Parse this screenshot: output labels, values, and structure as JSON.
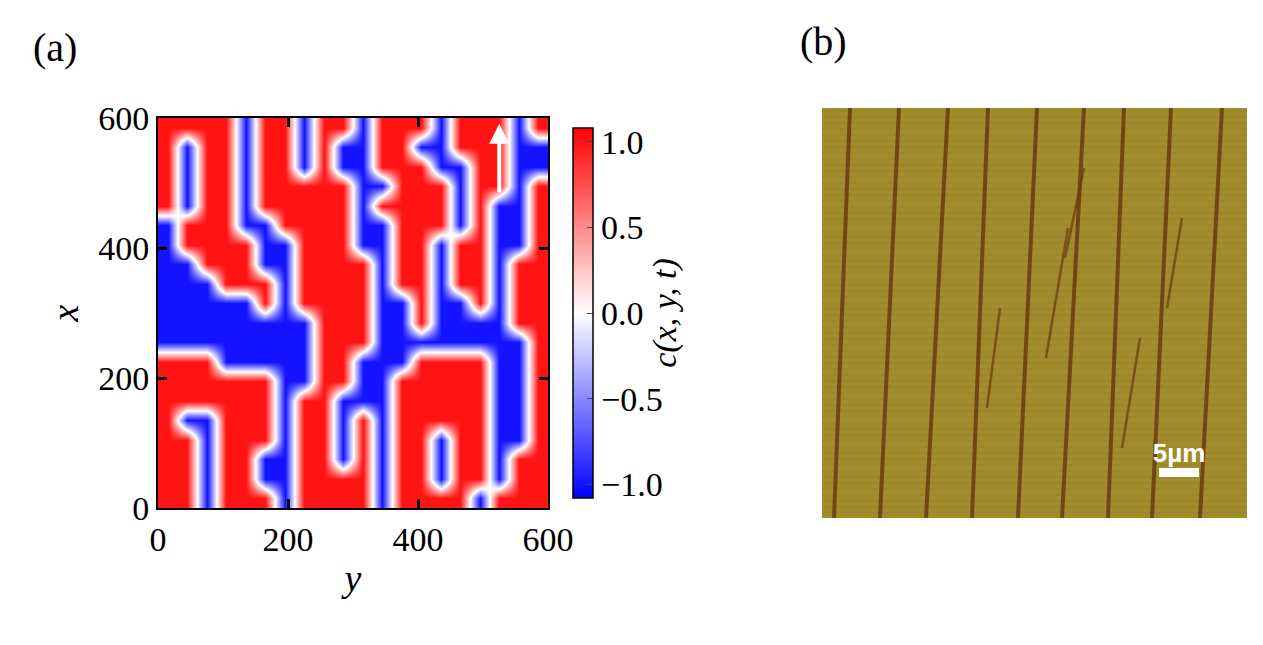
{
  "chart_data": {
    "type": "heatmap",
    "title": "(a)",
    "xlabel": "y",
    "ylabel": "x",
    "colorbar_label": "c(x, y, t)",
    "x": [
      15,
      45,
      75,
      105,
      135,
      165,
      195,
      225,
      255,
      285,
      315,
      345,
      375,
      405,
      435,
      465,
      495,
      525,
      555,
      585
    ],
    "y": [
      15,
      45,
      75,
      105,
      135,
      165,
      195,
      225,
      255,
      285,
      315,
      345,
      375,
      405,
      435,
      465,
      495,
      525,
      555,
      585
    ],
    "z": [
      [
        1,
        1,
        -1,
        1,
        1,
        1,
        -1,
        1,
        1,
        1,
        1,
        -1,
        1,
        1,
        1,
        1,
        -1,
        1,
        1,
        1
      ],
      [
        1,
        1,
        -1,
        1,
        1,
        -1,
        -1,
        1,
        1,
        1,
        1,
        -1,
        1,
        1,
        -1,
        1,
        1,
        -1,
        1,
        1
      ],
      [
        1,
        1,
        -1,
        1,
        1,
        -1,
        -1,
        1,
        1,
        -1,
        1,
        -1,
        1,
        1,
        -1,
        1,
        1,
        -1,
        1,
        1
      ],
      [
        1,
        1,
        -1,
        1,
        1,
        1,
        -1,
        1,
        1,
        -1,
        1,
        -1,
        1,
        1,
        -1,
        1,
        1,
        -1,
        -1,
        1
      ],
      [
        1,
        -1,
        -1,
        1,
        1,
        1,
        -1,
        1,
        1,
        -1,
        1,
        -1,
        1,
        1,
        1,
        1,
        1,
        -1,
        -1,
        1
      ],
      [
        1,
        1,
        1,
        1,
        1,
        1,
        -1,
        1,
        1,
        -1,
        -1,
        -1,
        1,
        1,
        1,
        1,
        1,
        -1,
        -1,
        1
      ],
      [
        1,
        1,
        1,
        1,
        1,
        1,
        -1,
        -1,
        1,
        1,
        -1,
        -1,
        1,
        1,
        1,
        1,
        1,
        -1,
        -1,
        1
      ],
      [
        1,
        1,
        1,
        -1,
        -1,
        -1,
        -1,
        -1,
        1,
        1,
        -1,
        -1,
        -1,
        1,
        1,
        1,
        1,
        -1,
        -1,
        1
      ],
      [
        -1,
        -1,
        -1,
        -1,
        -1,
        -1,
        -1,
        -1,
        1,
        1,
        1,
        -1,
        -1,
        -1,
        -1,
        -1,
        -1,
        -1,
        -1,
        1
      ],
      [
        -1,
        -1,
        -1,
        -1,
        -1,
        -1,
        -1,
        -1,
        1,
        1,
        1,
        -1,
        -1,
        1,
        -1,
        -1,
        -1,
        -1,
        1,
        1
      ],
      [
        -1,
        -1,
        -1,
        -1,
        -1,
        1,
        -1,
        1,
        1,
        1,
        1,
        -1,
        -1,
        1,
        -1,
        -1,
        1,
        -1,
        1,
        1
      ],
      [
        -1,
        -1,
        -1,
        1,
        1,
        1,
        -1,
        1,
        1,
        1,
        1,
        -1,
        1,
        1,
        -1,
        1,
        1,
        -1,
        1,
        1
      ],
      [
        -1,
        -1,
        1,
        1,
        1,
        -1,
        -1,
        1,
        1,
        1,
        1,
        -1,
        1,
        1,
        -1,
        1,
        1,
        -1,
        1,
        1
      ],
      [
        -1,
        1,
        1,
        1,
        1,
        -1,
        -1,
        1,
        1,
        1,
        -1,
        -1,
        1,
        1,
        -1,
        1,
        1,
        -1,
        -1,
        1
      ],
      [
        -1,
        1,
        1,
        1,
        -1,
        -1,
        1,
        1,
        1,
        1,
        -1,
        -1,
        1,
        1,
        1,
        -1,
        1,
        -1,
        -1,
        1
      ],
      [
        1,
        -1,
        1,
        1,
        -1,
        1,
        1,
        1,
        1,
        1,
        -1,
        1,
        1,
        1,
        1,
        -1,
        1,
        -1,
        -1,
        1
      ],
      [
        1,
        -1,
        1,
        1,
        -1,
        1,
        1,
        1,
        1,
        1,
        -1,
        -1,
        1,
        1,
        1,
        -1,
        1,
        1,
        -1,
        1
      ],
      [
        1,
        -1,
        1,
        1,
        -1,
        1,
        1,
        -1,
        1,
        -1,
        -1,
        1,
        1,
        1,
        -1,
        -1,
        1,
        1,
        -1,
        -1
      ],
      [
        1,
        -1,
        1,
        1,
        -1,
        1,
        1,
        -1,
        1,
        -1,
        -1,
        1,
        1,
        -1,
        -1,
        1,
        1,
        1,
        -1,
        -1
      ],
      [
        1,
        1,
        1,
        1,
        -1,
        1,
        1,
        -1,
        1,
        1,
        -1,
        1,
        1,
        1,
        -1,
        1,
        1,
        1,
        -1,
        1
      ]
    ],
    "xlim": [
      0,
      600
    ],
    "ylim": [
      0,
      600
    ],
    "xticks": [
      0,
      200,
      400,
      600
    ],
    "yticks": [
      0,
      200,
      400,
      600
    ],
    "zlim": [
      -1.08,
      1.08
    ],
    "zticks": [
      {
        "value": -1,
        "label": "−1.0"
      },
      {
        "value": -0.5,
        "label": "−0.5"
      },
      {
        "value": 0,
        "label": "0.0"
      },
      0.5,
      {
        "value": 1,
        "label": "1.0"
      }
    ],
    "grid": false
  },
  "image": {
    "panel": "(b)",
    "scale_bar": "5µm"
  }
}
